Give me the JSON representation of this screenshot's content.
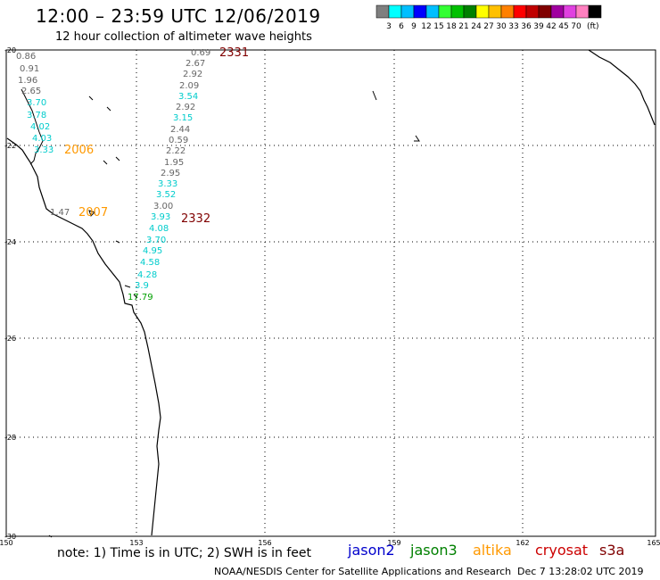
{
  "header": {
    "title": "12:00 – 23:59 UTC 12/06/2019",
    "subtitle": "12 hour collection of altimeter wave heights"
  },
  "colorbar": {
    "unit": "(ft)",
    "colors": [
      "#7f7f7f",
      "#00ffff",
      "#00bfff",
      "#0000ff",
      "#00bfff",
      "#33ff33",
      "#00c000",
      "#008000",
      "#ffff00",
      "#ffc000",
      "#ff8000",
      "#ff0000",
      "#c00000",
      "#800000",
      "#a000a0",
      "#e040e0",
      "#ff80c0",
      "#000000"
    ],
    "labels": [
      "3",
      "6",
      "9",
      "12",
      "15",
      "18",
      "21",
      "24",
      "27",
      "30",
      "33",
      "36",
      "39",
      "42",
      "45",
      "70"
    ]
  },
  "axes": {
    "lat_labels": [
      "-20",
      "-22",
      "-24",
      "-26",
      "-28",
      "-30"
    ],
    "lon_labels": [
      "150",
      "153",
      "156",
      "159",
      "162",
      "165"
    ]
  },
  "tracks": [
    {
      "label": "2331",
      "color": "#800000"
    },
    {
      "label": "2332",
      "color": "#800000"
    },
    {
      "label": "2006",
      "color": "#ff9900"
    },
    {
      "label": "2007",
      "color": "#ff9900"
    }
  ],
  "track_a_values": [
    {
      "v": "0.69",
      "c": "gray"
    },
    {
      "v": "2.67",
      "c": "gray"
    },
    {
      "v": "2.92",
      "c": "gray"
    },
    {
      "v": "2.09",
      "c": "gray"
    },
    {
      "v": "3.54",
      "c": "cyan"
    },
    {
      "v": "2.92",
      "c": "gray"
    },
    {
      "v": "3.15",
      "c": "cyan"
    },
    {
      "v": "2.44",
      "c": "gray"
    },
    {
      "v": "0.59",
      "c": "gray"
    },
    {
      "v": "2.22",
      "c": "gray"
    },
    {
      "v": "1.95",
      "c": "gray"
    },
    {
      "v": "2.95",
      "c": "gray"
    },
    {
      "v": "3.33",
      "c": "cyan"
    },
    {
      "v": "3.52",
      "c": "cyan"
    },
    {
      "v": "3.00",
      "c": "gray"
    },
    {
      "v": "3.93",
      "c": "cyan"
    },
    {
      "v": "4.08",
      "c": "cyan"
    },
    {
      "v": "3.70",
      "c": "cyan"
    },
    {
      "v": "4.95",
      "c": "cyan"
    },
    {
      "v": "4.58",
      "c": "cyan"
    },
    {
      "v": "4.28",
      "c": "cyan"
    },
    {
      "v": "3.9",
      "c": "cyan"
    },
    {
      "v": "17.79",
      "c": "green"
    }
  ],
  "track_b_values": [
    {
      "v": "0.86",
      "c": "gray"
    },
    {
      "v": "0.91",
      "c": "gray"
    },
    {
      "v": "1.96",
      "c": "gray"
    },
    {
      "v": "2.65",
      "c": "gray"
    },
    {
      "v": "3.70",
      "c": "cyan"
    },
    {
      "v": "3.78",
      "c": "cyan"
    },
    {
      "v": "4.02",
      "c": "cyan"
    },
    {
      "v": "4.03",
      "c": "cyan"
    },
    {
      "v": "3.33",
      "c": "cyan"
    },
    {
      "v": "1.47",
      "c": "gray"
    }
  ],
  "footer": {
    "note": "note: 1) Time is in UTC; 2) SWH is in feet",
    "credit": "NOAA/NESDIS Center for Satellite Applications and Research",
    "timestamp": "Dec  7 13:28:02 UTC 2019",
    "satellites": [
      {
        "name": "jason2",
        "color": "#0000cc"
      },
      {
        "name": "jason3",
        "color": "#008000"
      },
      {
        "name": "altika",
        "color": "#ff9900"
      },
      {
        "name": "cryosat",
        "color": "#cc0000"
      },
      {
        "name": "s3a",
        "color": "#800000"
      }
    ]
  }
}
